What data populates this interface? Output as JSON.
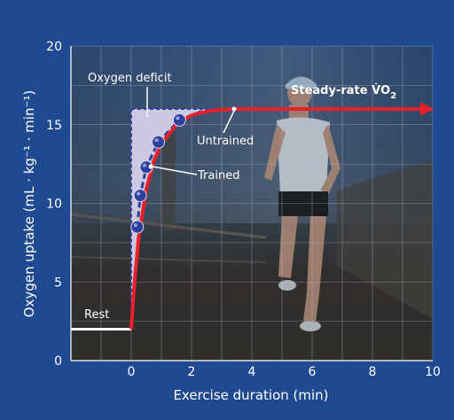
{
  "chart_data": {
    "type": "line",
    "title": "",
    "xlabel": "Exercise duration (min)",
    "ylabel": "Oxygen uptake (mL · kg⁻¹ · min⁻¹)",
    "xlim": [
      -2,
      10
    ],
    "ylim": [
      0,
      20
    ],
    "x_ticks": [
      "0",
      "2",
      "4",
      "6",
      "8",
      "10"
    ],
    "y_ticks": [
      "0",
      "5",
      "10",
      "15",
      "20"
    ],
    "grid": true,
    "steady_rate": 16,
    "rest_level": 2,
    "annotations": {
      "oxygen_deficit": "Oxygen deficit",
      "steady_rate": "Steady-rate V̇O",
      "steady_rate_sub": "2",
      "untrained": "Untrained",
      "trained": "Trained",
      "rest": "Rest"
    },
    "series": [
      {
        "name": "Untrained",
        "color": "#e8202a",
        "x": [
          0,
          0.1,
          0.25,
          0.5,
          0.75,
          1.0,
          1.5,
          2.0,
          2.5,
          3.0,
          3.5,
          10
        ],
        "y": [
          2.0,
          4.8,
          7.9,
          10.9,
          12.7,
          13.8,
          15.0,
          15.6,
          15.85,
          15.95,
          16.0,
          16.0
        ]
      },
      {
        "name": "Trained",
        "color": "#2e3f9e",
        "x": [
          0.2,
          0.3,
          0.5,
          0.9,
          1.6,
          2.4,
          3.5
        ],
        "y": [
          8.5,
          10.5,
          12.3,
          13.9,
          15.3,
          15.9,
          16.0
        ]
      }
    ],
    "trained_markers": {
      "x": [
        0.2,
        0.3,
        0.5,
        0.9,
        1.6
      ],
      "y": [
        8.5,
        10.5,
        12.3,
        13.9,
        15.3
      ]
    },
    "colors": {
      "background": "#1f4a8f",
      "untrained": "#e8202a",
      "trained": "#2e3f9e",
      "deficit_fill": "#d9d2ec",
      "grid": "#b8c4d8"
    }
  }
}
